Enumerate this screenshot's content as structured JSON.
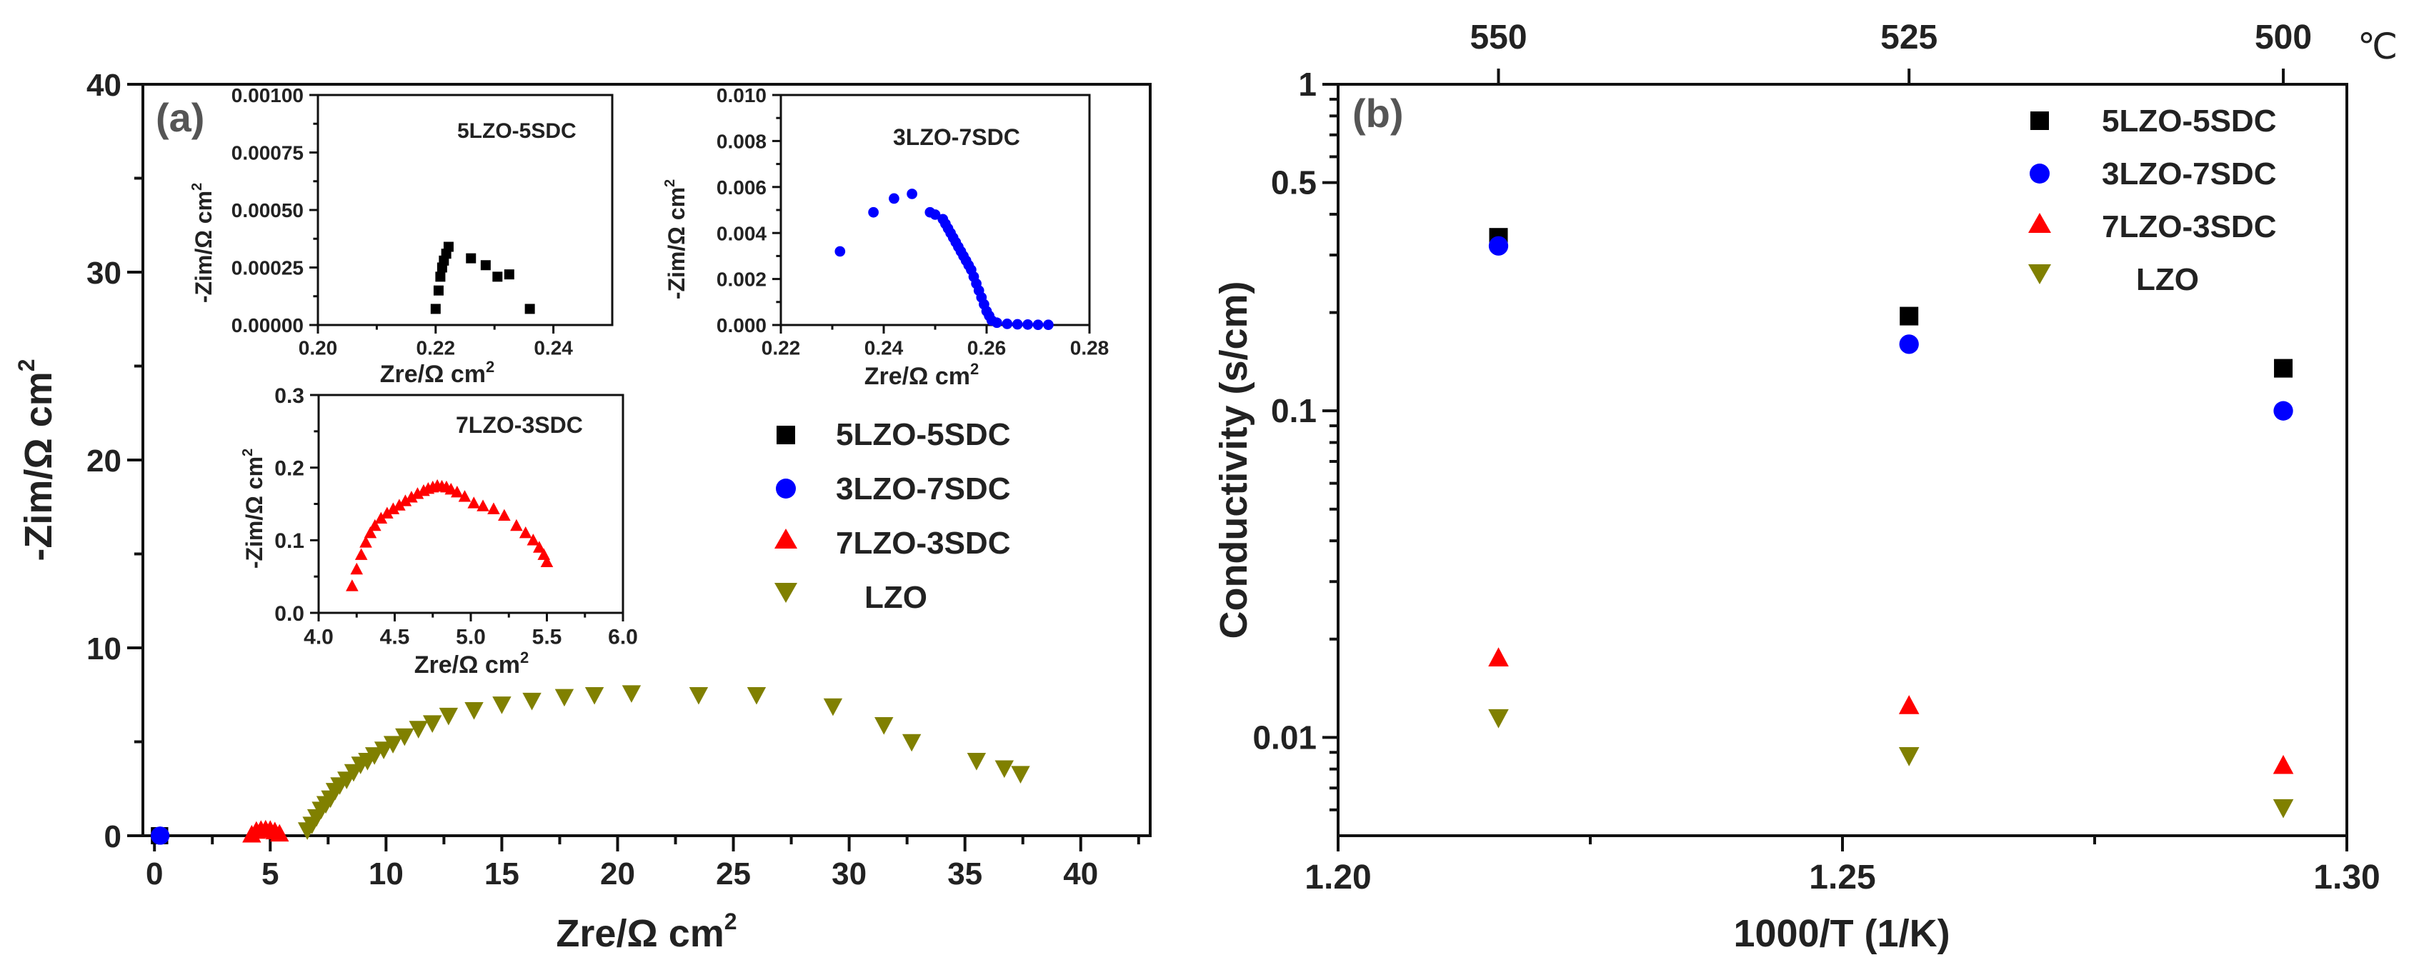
{
  "chart_data": [
    {
      "id": "a",
      "panel_label": "(a)",
      "type": "scatter",
      "xlabel": "Zre/Ω cm",
      "xlabel_sup": "2",
      "ylabel": "-Zim/Ω cm",
      "ylabel_sup": "2",
      "xlim": [
        -0.5,
        43
      ],
      "ylim": [
        0,
        40
      ],
      "xticks": [
        0,
        5,
        10,
        15,
        20,
        25,
        30,
        35,
        40
      ],
      "yticks": [
        0,
        10,
        20,
        30,
        40
      ],
      "legend": {
        "position": "center-right",
        "entries": [
          {
            "name": "5LZO-5SDC",
            "marker": "square",
            "color": "#000000"
          },
          {
            "name": "3LZO-7SDC",
            "marker": "circle",
            "color": "#0000ff"
          },
          {
            "name": "7LZO-3SDC",
            "marker": "triangle-up",
            "color": "#ff0000"
          },
          {
            "name": "LZO",
            "marker": "triangle-down",
            "color": "#808000"
          }
        ]
      },
      "series": [
        {
          "name": "5LZO-5SDC",
          "marker": "square",
          "color": "#000000",
          "x": [
            0.22,
            0.221,
            0.222
          ],
          "y": [
            0.0001,
            0.0002,
            0.0003
          ]
        },
        {
          "name": "3LZO-7SDC",
          "marker": "circle",
          "color": "#0000ff",
          "x": [
            0.23,
            0.24,
            0.25,
            0.26
          ],
          "y": [
            0.003,
            0.005,
            0.004,
            0.001
          ]
        },
        {
          "name": "7LZO-3SDC",
          "marker": "triangle-up",
          "color": "#ff0000",
          "x": [
            4.2,
            4.4,
            4.6,
            4.8,
            5.0,
            5.2,
            5.4
          ],
          "y": [
            0.05,
            0.25,
            0.3,
            0.32,
            0.3,
            0.22,
            0.1
          ]
        },
        {
          "name": "LZO",
          "marker": "triangle-down",
          "color": "#808000",
          "x": [
            6.6,
            6.8,
            7.0,
            7.2,
            7.4,
            7.6,
            7.8,
            8.0,
            8.3,
            8.6,
            8.9,
            9.2,
            9.5,
            9.9,
            10.3,
            10.8,
            11.4,
            12.0,
            12.7,
            13.8,
            15.0,
            16.3,
            17.7,
            19.0,
            20.6,
            23.5,
            26.0,
            29.3,
            31.5,
            32.7,
            35.5,
            36.7,
            37.4
          ],
          "y": [
            0.3,
            0.6,
            1.0,
            1.4,
            1.7,
            2.0,
            2.4,
            2.7,
            3.0,
            3.4,
            3.8,
            4.0,
            4.3,
            4.6,
            4.9,
            5.3,
            5.7,
            6.0,
            6.4,
            6.7,
            7.0,
            7.2,
            7.4,
            7.5,
            7.6,
            7.5,
            7.5,
            6.9,
            5.9,
            5.0,
            4.0,
            3.6,
            3.3
          ]
        }
      ],
      "insets": [
        {
          "id": "a1",
          "type": "scatter",
          "xlabel": "Zre/Ω cm",
          "xlabel_sup": "2",
          "ylabel": "-Zim/Ω cm",
          "ylabel_sup": "2",
          "xlim": [
            0.2,
            0.25
          ],
          "ylim": [
            0,
            0.001
          ],
          "xticks": [
            0.2,
            0.22,
            0.24
          ],
          "xtick_labels": [
            "0.20",
            "0.22",
            "0.24"
          ],
          "yticks": [
            0,
            0.00025,
            0.0005,
            0.00075,
            0.001
          ],
          "ytick_labels": [
            "0.00000",
            "0.00025",
            "0.00050",
            "0.00075",
            "0.00100"
          ],
          "legend_label": "5LZO-5SDC",
          "series": [
            {
              "name": "5LZO-5SDC",
              "marker": "square",
              "color": "#000000",
              "x": [
                0.22,
                0.2205,
                0.2208,
                0.2211,
                0.2214,
                0.2218,
                0.2222,
                0.226,
                0.2285,
                0.2305,
                0.2325,
                0.236
              ],
              "y": [
                7e-05,
                0.00015,
                0.00021,
                0.00025,
                0.00028,
                0.00031,
                0.00034,
                0.00029,
                0.00026,
                0.00021,
                0.00022,
                7e-05
              ]
            }
          ]
        },
        {
          "id": "a2",
          "type": "scatter",
          "xlabel": "Zre/Ω cm",
          "xlabel_sup": "2",
          "ylabel": "-Zim/Ω cm",
          "ylabel_sup": "2",
          "xlim": [
            0.22,
            0.28
          ],
          "ylim": [
            0,
            0.01
          ],
          "xticks": [
            0.22,
            0.24,
            0.26,
            0.28
          ],
          "xtick_labels": [
            "0.22",
            "0.24",
            "0.26",
            "0.28"
          ],
          "yticks": [
            0,
            0.002,
            0.004,
            0.006,
            0.008,
            0.01
          ],
          "ytick_labels": [
            "0.000",
            "0.002",
            "0.004",
            "0.006",
            "0.008",
            "0.010"
          ],
          "legend_label": "3LZO-7SDC",
          "series": [
            {
              "name": "3LZO-7SDC",
              "marker": "circle",
              "color": "#0000ff",
              "x": [
                0.2315,
                0.238,
                0.242,
                0.2455,
                0.249,
                0.25,
                0.2515,
                0.252,
                0.2525,
                0.253,
                0.2535,
                0.254,
                0.2545,
                0.255,
                0.2555,
                0.256,
                0.2565,
                0.257,
                0.2575,
                0.258,
                0.2585,
                0.259,
                0.2595,
                0.26,
                0.2605,
                0.261,
                0.262,
                0.264,
                0.266,
                0.268,
                0.27,
                0.272
              ],
              "y": [
                0.0032,
                0.0049,
                0.0055,
                0.0057,
                0.0049,
                0.0048,
                0.0046,
                0.0044,
                0.0042,
                0.004,
                0.0038,
                0.0036,
                0.0034,
                0.0032,
                0.003,
                0.0028,
                0.0026,
                0.0024,
                0.0021,
                0.0018,
                0.0015,
                0.0012,
                0.0009,
                0.0006,
                0.0004,
                0.0002,
                0.0001,
                5e-05,
                3e-05,
                2e-05,
                1e-05,
                1e-05
              ]
            }
          ]
        },
        {
          "id": "a3",
          "type": "scatter",
          "xlabel": "Zre/Ω cm",
          "xlabel_sup": "2",
          "ylabel": "-Zim/Ω cm",
          "ylabel_sup": "2",
          "xlim": [
            4.0,
            6.0
          ],
          "ylim": [
            0,
            0.3
          ],
          "xticks": [
            4.0,
            4.5,
            5.0,
            5.5,
            6.0
          ],
          "xtick_labels": [
            "4.0",
            "4.5",
            "5.0",
            "5.5",
            "6.0"
          ],
          "yticks": [
            0,
            0.1,
            0.2,
            0.3
          ],
          "ytick_labels": [
            "0.0",
            "0.1",
            "0.2",
            "0.3"
          ],
          "legend_label": "7LZO-3SDC",
          "series": [
            {
              "name": "7LZO-3SDC",
              "marker": "triangle-up",
              "color": "#ff0000",
              "x": [
                4.22,
                4.25,
                4.28,
                4.31,
                4.34,
                4.37,
                4.41,
                4.45,
                4.49,
                4.53,
                4.57,
                4.61,
                4.65,
                4.69,
                4.72,
                4.75,
                4.78,
                4.81,
                4.84,
                4.87,
                4.91,
                4.96,
                5.02,
                5.08,
                5.15,
                5.22,
                5.3,
                5.36,
                5.41,
                5.45,
                5.48,
                5.5
              ],
              "y": [
                0.037,
                0.06,
                0.08,
                0.097,
                0.11,
                0.12,
                0.13,
                0.137,
                0.143,
                0.148,
                0.154,
                0.159,
                0.164,
                0.168,
                0.171,
                0.173,
                0.175,
                0.174,
                0.173,
                0.17,
                0.166,
                0.16,
                0.151,
                0.147,
                0.143,
                0.134,
                0.12,
                0.11,
                0.1,
                0.09,
                0.08,
                0.07
              ]
            }
          ]
        }
      ]
    },
    {
      "id": "b",
      "panel_label": "(b)",
      "type": "scatter",
      "xlabel": "1000/T (1/K)",
      "ylabel": "Conductivity (s/cm)",
      "xscale": "linear",
      "yscale": "log",
      "xlim": [
        1.2,
        1.3
      ],
      "ylim": [
        0.005,
        1
      ],
      "xticks": [
        1.2,
        1.25,
        1.3
      ],
      "xtick_labels": [
        "1.20",
        "1.25",
        "1.30"
      ],
      "yticks": [
        0.01,
        0.1,
        0.5,
        1
      ],
      "ytick_labels": [
        "0.01",
        "0.1",
        "0.5",
        "1"
      ],
      "top_axis": {
        "ticks": [
          1.2159,
          1.2566,
          1.2937
        ],
        "labels": [
          "550",
          "525",
          "500"
        ],
        "unit": "℃"
      },
      "legend": {
        "position": "top-right",
        "entries": [
          {
            "name": "5LZO-5SDC",
            "marker": "square",
            "color": "#000000"
          },
          {
            "name": "3LZO-7SDC",
            "marker": "circle",
            "color": "#0000ff"
          },
          {
            "name": "7LZO-3SDC",
            "marker": "triangle-up",
            "color": "#ff0000"
          },
          {
            "name": "LZO",
            "marker": "triangle-down",
            "color": "#808000"
          }
        ]
      },
      "series": [
        {
          "name": "5LZO-5SDC",
          "marker": "square",
          "color": "#000000",
          "x": [
            1.2159,
            1.2566,
            1.2937
          ],
          "y": [
            0.34,
            0.195,
            0.135
          ]
        },
        {
          "name": "3LZO-7SDC",
          "marker": "circle",
          "color": "#0000ff",
          "x": [
            1.2159,
            1.2566,
            1.2937
          ],
          "y": [
            0.32,
            0.16,
            0.1
          ]
        },
        {
          "name": "7LZO-3SDC",
          "marker": "triangle-up",
          "color": "#ff0000",
          "x": [
            1.2159,
            1.2566,
            1.2937
          ],
          "y": [
            0.0175,
            0.0125,
            0.0082
          ]
        },
        {
          "name": "LZO",
          "marker": "triangle-down",
          "color": "#808000",
          "x": [
            1.2159,
            1.2566,
            1.2937
          ],
          "y": [
            0.0115,
            0.0088,
            0.0061
          ]
        }
      ]
    }
  ]
}
